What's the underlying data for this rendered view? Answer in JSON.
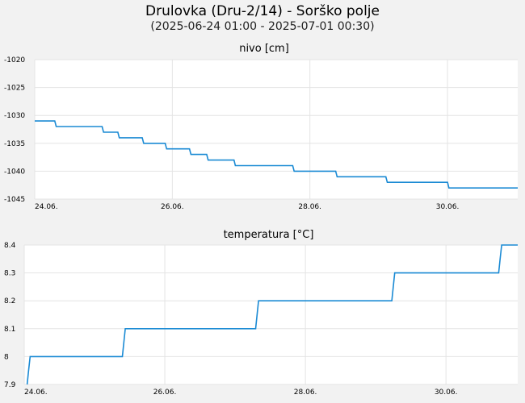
{
  "header": {
    "title": "Drulovka (Dru-2/14) - Sorško polje",
    "subtitle": "(2025-06-24 01:00 - 2025-07-01 00:30)"
  },
  "chart_data": [
    {
      "type": "line",
      "title": "nivo [cm]",
      "x_tick_labels": [
        "24.06.",
        "26.06.",
        "28.06.",
        "30.06."
      ],
      "x_tick_dates": [
        "2025-06-24",
        "2025-06-26",
        "2025-06-28",
        "2025-06-30"
      ],
      "xlim": [
        "2025-06-24T00:00",
        "2025-07-01T00:30"
      ],
      "ylim": [
        -1045,
        -1020
      ],
      "y_ticks": [
        -1045,
        -1040,
        -1035,
        -1030,
        -1025,
        -1020
      ],
      "grid": true,
      "color": "#1a8ad4",
      "series": [
        {
          "x": [
            "2025-06-24T00:00",
            "2025-06-24T07:00",
            "2025-06-24T07:30",
            "2025-06-24T23:30",
            "2025-06-25T00:00",
            "2025-06-25T05:00",
            "2025-06-25T05:30",
            "2025-06-25T13:30",
            "2025-06-25T14:00",
            "2025-06-25T21:30",
            "2025-06-25T22:00",
            "2025-06-26T06:00",
            "2025-06-26T06:30",
            "2025-06-26T12:00",
            "2025-06-26T12:30",
            "2025-06-26T21:30",
            "2025-06-26T22:00",
            "2025-06-27T05:30",
            "2025-06-27T06:00",
            "2025-06-27T18:00",
            "2025-06-27T18:30",
            "2025-06-28T09:00",
            "2025-06-28T09:30",
            "2025-06-29T02:30",
            "2025-06-29T03:00",
            "2025-06-30T00:00",
            "2025-06-30T00:30",
            "2025-07-01T00:30"
          ],
          "y": [
            -1031,
            -1031,
            -1032,
            -1032,
            -1033,
            -1033,
            -1034,
            -1034,
            -1035,
            -1035,
            -1036,
            -1036,
            -1037,
            -1037,
            -1038,
            -1038,
            -1039,
            -1039,
            -1039,
            -1039,
            -1040,
            -1040,
            -1041,
            -1041,
            -1042,
            -1042,
            -1043,
            -1043
          ]
        }
      ]
    },
    {
      "type": "line",
      "title": "temperatura [°C]",
      "x_tick_labels": [
        "24.06.",
        "26.06.",
        "28.06.",
        "30.06."
      ],
      "x_tick_dates": [
        "2025-06-24",
        "2025-06-26",
        "2025-06-28",
        "2025-06-30"
      ],
      "xlim": [
        "2025-06-24T00:00",
        "2025-07-01T00:30"
      ],
      "ylim": [
        7.9,
        8.4
      ],
      "y_ticks": [
        7.9,
        8,
        8.1,
        8.2,
        8.3,
        8.4
      ],
      "grid": true,
      "color": "#1a8ad4",
      "series": [
        {
          "x": [
            "2025-06-24T01:00",
            "2025-06-24T01:30",
            "2025-06-24T02:00",
            "2025-06-25T09:30",
            "2025-06-25T10:00",
            "2025-06-25T10:30",
            "2025-06-27T07:00",
            "2025-06-27T07:30",
            "2025-06-27T08:00",
            "2025-06-29T05:30",
            "2025-06-29T06:00",
            "2025-06-29T06:30",
            "2025-06-30T18:00",
            "2025-06-30T18:30",
            "2025-06-30T19:00",
            "2025-07-01T00:30"
          ],
          "y": [
            7.9,
            7.95,
            8,
            8,
            8.05,
            8.1,
            8.1,
            8.15,
            8.2,
            8.2,
            8.25,
            8.3,
            8.3,
            8.35,
            8.4,
            8.4
          ]
        }
      ]
    }
  ]
}
